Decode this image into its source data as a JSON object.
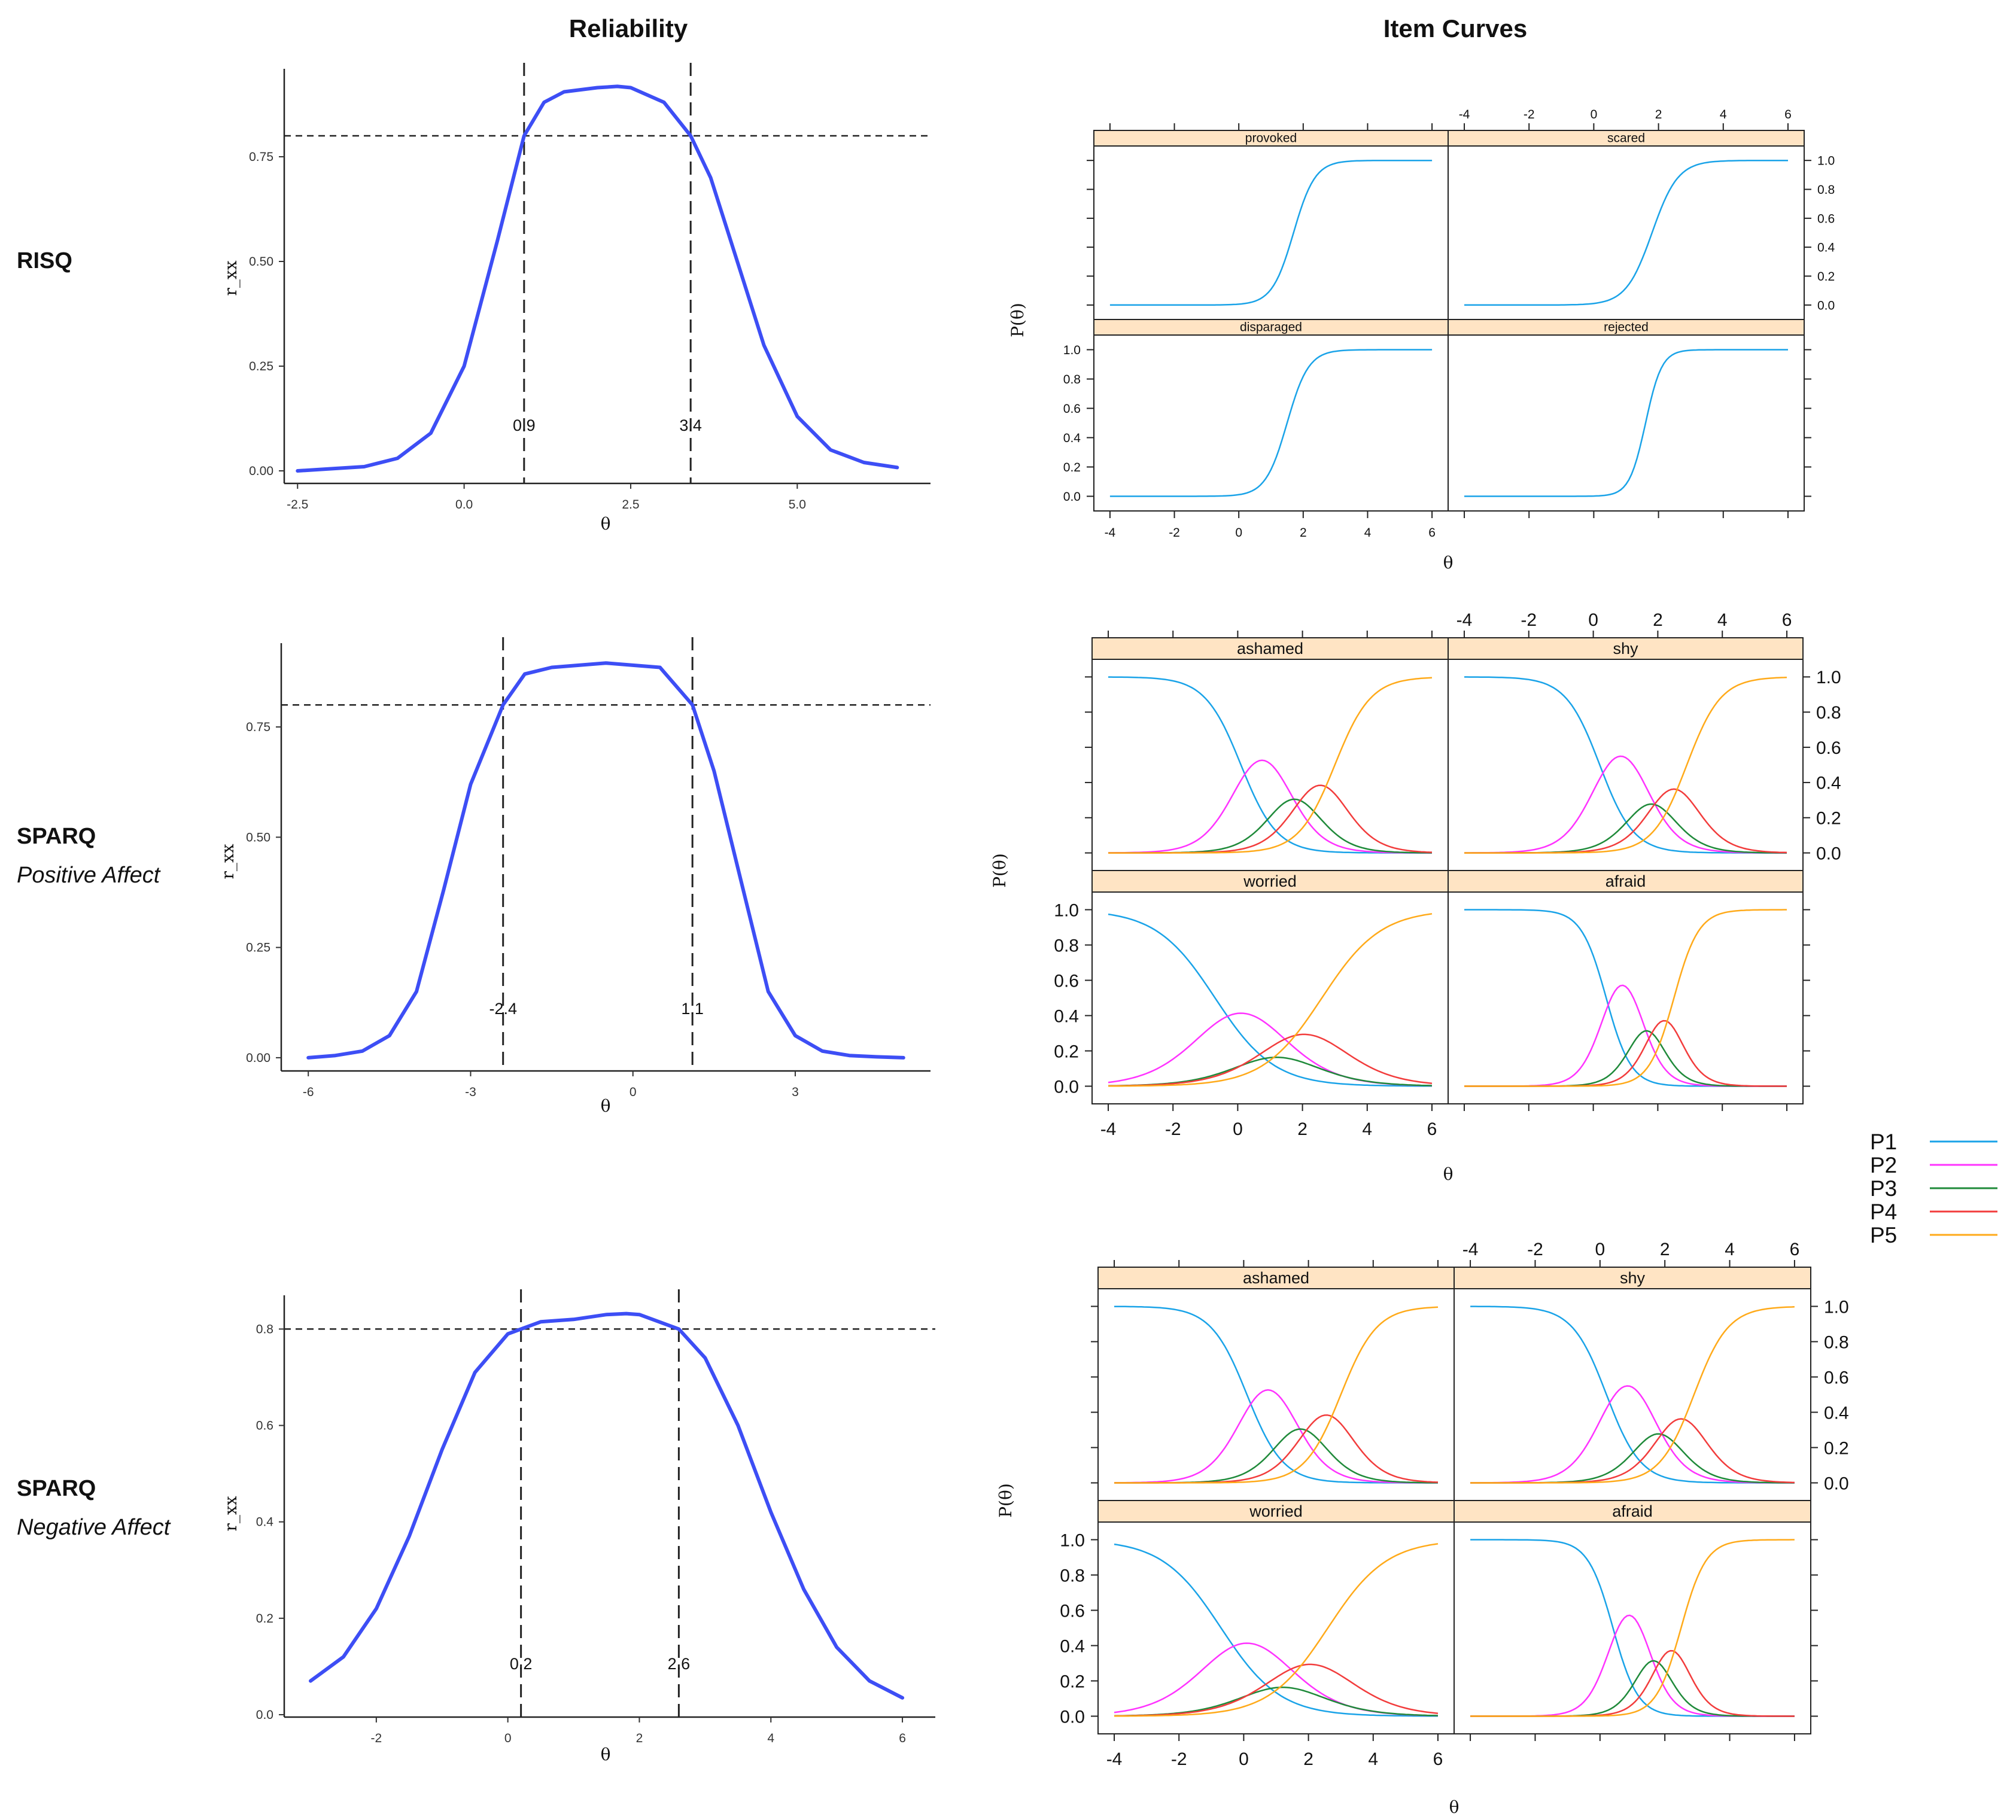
{
  "column_titles": {
    "reliability": "Reliability",
    "item_curves": "Item Curves"
  },
  "row_labels": [
    {
      "title": "RISQ",
      "subtitle": ""
    },
    {
      "title": "SPARQ",
      "subtitle": "Positive Affect"
    },
    {
      "title": "SPARQ",
      "subtitle": "Negative Affect"
    }
  ],
  "colors": {
    "reliability_curve": "#3d4ef5",
    "strip_fill": "#ffe4c4",
    "P1": "#1aa3e8",
    "P2": "#ff33ff",
    "P3": "#1f8a3a",
    "P4": "#f23c3c",
    "P5": "#ffaa1a"
  },
  "legend": [
    {
      "label": "P1",
      "color": "#1aa3e8"
    },
    {
      "label": "P2",
      "color": "#ff33ff"
    },
    {
      "label": "P3",
      "color": "#1f8a3a"
    },
    {
      "label": "P4",
      "color": "#f23c3c"
    },
    {
      "label": "P5",
      "color": "#ffaa1a"
    }
  ],
  "chart_data": [
    {
      "type": "line",
      "panel": "reliability",
      "row": "RISQ",
      "xlabel": "θ",
      "ylabel": "r_xx",
      "xlim": [
        -2.7,
        7.0
      ],
      "ylim": [
        -0.03,
        0.96
      ],
      "xticks": [
        -2.5,
        0.0,
        2.5,
        5.0
      ],
      "xtick_labels": [
        "-2.5",
        "0.0",
        "2.5",
        "5.0"
      ],
      "yticks": [
        0,
        0.25,
        0.5,
        0.75
      ],
      "ytick_labels": [
        "0.00",
        "0.25",
        "0.50",
        "0.75"
      ],
      "threshold": 0.8,
      "cutoffs": [
        0.9,
        3.4
      ],
      "cutoff_labels": [
        "0.9",
        "3.4"
      ],
      "x": [
        -2.5,
        -2.0,
        -1.5,
        -1.0,
        -0.5,
        0.0,
        0.5,
        0.9,
        1.2,
        1.5,
        2.0,
        2.3,
        2.5,
        3.0,
        3.4,
        3.7,
        4.0,
        4.5,
        5.0,
        5.5,
        6.0,
        6.5
      ],
      "y": [
        0.0,
        0.005,
        0.01,
        0.03,
        0.09,
        0.25,
        0.55,
        0.8,
        0.88,
        0.905,
        0.915,
        0.918,
        0.915,
        0.88,
        0.8,
        0.7,
        0.55,
        0.3,
        0.13,
        0.05,
        0.02,
        0.008
      ]
    },
    {
      "type": "line",
      "panel": "reliability",
      "row": "SPARQ Positive Affect",
      "xlabel": "θ",
      "ylabel": "r_xx",
      "xlim": [
        -6.5,
        5.5
      ],
      "ylim": [
        -0.03,
        0.94
      ],
      "xticks": [
        -6,
        -3,
        0,
        3
      ],
      "xtick_labels": [
        "-6",
        "-3",
        "0",
        "3"
      ],
      "yticks": [
        0,
        0.25,
        0.5,
        0.75
      ],
      "ytick_labels": [
        "0.00",
        "0.25",
        "0.50",
        "0.75"
      ],
      "threshold": 0.8,
      "cutoffs": [
        -2.4,
        1.1
      ],
      "cutoff_labels": [
        "-2.4",
        "1.1"
      ],
      "x": [
        -6.0,
        -5.5,
        -5.0,
        -4.5,
        -4.0,
        -3.5,
        -3.0,
        -2.4,
        -2.0,
        -1.5,
        -1.0,
        -0.5,
        0.0,
        0.5,
        1.1,
        1.5,
        2.0,
        2.5,
        3.0,
        3.5,
        4.0,
        4.5,
        5.0
      ],
      "y": [
        0.0,
        0.005,
        0.015,
        0.05,
        0.15,
        0.38,
        0.62,
        0.8,
        0.87,
        0.885,
        0.89,
        0.895,
        0.89,
        0.885,
        0.8,
        0.65,
        0.4,
        0.15,
        0.05,
        0.015,
        0.005,
        0.002,
        0.0
      ]
    },
    {
      "type": "line",
      "panel": "reliability",
      "row": "SPARQ Negative Affect",
      "xlabel": "θ",
      "ylabel": "r_xx",
      "xlim": [
        -3.4,
        6.5
      ],
      "ylim": [
        -0.005,
        0.87
      ],
      "xticks": [
        -2,
        0,
        2,
        4,
        6
      ],
      "xtick_labels": [
        "-2",
        "0",
        "2",
        "4",
        "6"
      ],
      "yticks": [
        0,
        0.2,
        0.4,
        0.6,
        0.8
      ],
      "ytick_labels": [
        "0.0",
        "0.2",
        "0.4",
        "0.6",
        "0.8"
      ],
      "threshold": 0.8,
      "cutoffs": [
        0.2,
        2.6
      ],
      "cutoff_labels": [
        "0.2",
        "2.6"
      ],
      "x": [
        -3.0,
        -2.5,
        -2.0,
        -1.5,
        -1.0,
        -0.5,
        0.0,
        0.2,
        0.5,
        1.0,
        1.5,
        1.8,
        2.0,
        2.6,
        3.0,
        3.5,
        4.0,
        4.5,
        5.0,
        5.5,
        6.0
      ],
      "y": [
        0.07,
        0.12,
        0.22,
        0.37,
        0.55,
        0.71,
        0.79,
        0.8,
        0.815,
        0.82,
        0.83,
        0.832,
        0.83,
        0.8,
        0.74,
        0.6,
        0.42,
        0.26,
        0.14,
        0.07,
        0.035
      ]
    },
    {
      "type": "line",
      "panel": "item_curves",
      "row": "RISQ",
      "xlabel": "θ",
      "ylabel": "P(θ)",
      "xlim": [
        -4.5,
        6.5
      ],
      "ylim": [
        -0.1,
        1.1
      ],
      "xticks": [
        -4,
        -2,
        0,
        2,
        4,
        6
      ],
      "xtick_labels": [
        "-4",
        "-2",
        "0",
        "2",
        "4",
        "6"
      ],
      "yticks": [
        0,
        0.2,
        0.4,
        0.6,
        0.8,
        1.0
      ],
      "ytick_labels": [
        "0.0",
        "0.2",
        "0.4",
        "0.6",
        "0.8",
        "1.0"
      ],
      "model": "2PL",
      "categories": [
        "P1"
      ],
      "items": [
        {
          "name": "provoked",
          "a": 3.0,
          "b": 1.7
        },
        {
          "name": "scared",
          "a": 2.5,
          "b": 1.8
        },
        {
          "name": "disparaged",
          "a": 3.0,
          "b": 1.5
        },
        {
          "name": "rejected",
          "a": 4.0,
          "b": 1.6
        }
      ]
    },
    {
      "type": "line",
      "panel": "item_curves",
      "row": "SPARQ Positive Affect",
      "xlabel": "θ",
      "ylabel": "P(θ)",
      "xlim": [
        -4.5,
        6.5
      ],
      "ylim": [
        -0.1,
        1.1
      ],
      "xticks": [
        -4,
        -2,
        0,
        2,
        4,
        6
      ],
      "xtick_labels": [
        "-4",
        "-2",
        "0",
        "2",
        "4",
        "6"
      ],
      "yticks": [
        0,
        0.2,
        0.4,
        0.6,
        0.8,
        1.0
      ],
      "ytick_labels": [
        "0.0",
        "0.2",
        "0.4",
        "0.6",
        "0.8",
        "1.0"
      ],
      "model": "graded response",
      "categories": [
        "P1",
        "P2",
        "P3",
        "P4",
        "P5"
      ],
      "items": [
        {
          "name": "ashamed",
          "a": 1.8,
          "b": [
            0.1,
            1.4,
            2.1,
            3.0
          ]
        },
        {
          "name": "shy",
          "a": 1.9,
          "b": [
            0.2,
            1.5,
            2.1,
            2.9
          ]
        },
        {
          "name": "worried",
          "a": 1.1,
          "b": [
            -0.7,
            0.9,
            1.5,
            2.6
          ]
        },
        {
          "name": "afraid",
          "a": 2.6,
          "b": [
            0.4,
            1.4,
            1.9,
            2.5
          ]
        }
      ]
    },
    {
      "type": "line",
      "panel": "item_curves",
      "row": "SPARQ Negative Affect",
      "xlabel": "θ",
      "ylabel": "P(θ)",
      "xlim": [
        -4.5,
        6.5
      ],
      "ylim": [
        -0.1,
        1.1
      ],
      "xticks": [
        -4,
        -2,
        0,
        2,
        4,
        6
      ],
      "xtick_labels": [
        "-4",
        "-2",
        "0",
        "2",
        "4",
        "6"
      ],
      "yticks": [
        0,
        0.2,
        0.4,
        0.6,
        0.8,
        1.0
      ],
      "ytick_labels": [
        "0.0",
        "0.2",
        "0.4",
        "0.6",
        "0.8",
        "1.0"
      ],
      "model": "graded response",
      "categories": [
        "P1",
        "P2",
        "P3",
        "P4",
        "P5"
      ],
      "items": [
        {
          "name": "ashamed",
          "a": 1.8,
          "b": [
            0.1,
            1.4,
            2.1,
            3.0
          ]
        },
        {
          "name": "shy",
          "a": 1.9,
          "b": [
            0.2,
            1.5,
            2.1,
            2.9
          ]
        },
        {
          "name": "worried",
          "a": 1.1,
          "b": [
            -0.7,
            0.9,
            1.5,
            2.6
          ]
        },
        {
          "name": "afraid",
          "a": 2.6,
          "b": [
            0.4,
            1.4,
            1.9,
            2.5
          ]
        }
      ]
    }
  ]
}
